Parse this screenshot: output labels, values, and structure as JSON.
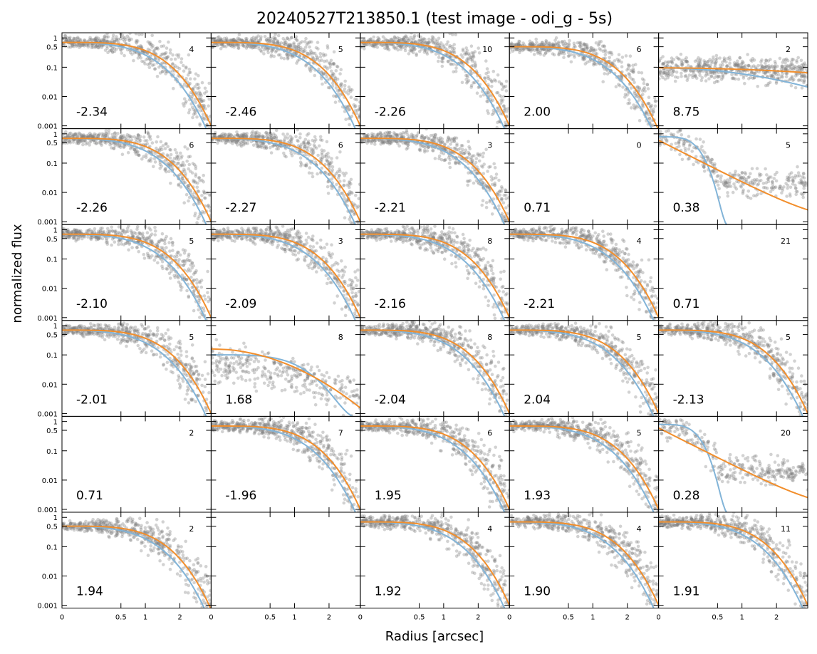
{
  "chart_data": {
    "type": "scatter",
    "title": "20240527T213850.1 (test image - odi_g - 5s)",
    "xlabel": "Radius [arcsec]",
    "ylabel": "normalized flux",
    "x_scale": "sqrt",
    "y_scale": "log",
    "xlim": [
      0,
      3.2
    ],
    "ylim": [
      0.0008,
      1.5
    ],
    "xticks": [
      0,
      0.5,
      1,
      2
    ],
    "xtick_labels": [
      "0",
      "0.5",
      "1",
      "2"
    ],
    "yticks": [
      0.001,
      0.01,
      0.1,
      0.5,
      1
    ],
    "ytick_labels": [
      "0.001",
      "0.01",
      "0.1",
      "0.5",
      "1"
    ],
    "grid": false,
    "legend": "none",
    "colors": {
      "scatter": "#7f7f7f",
      "fit_orange": "#f28e2b",
      "fit_blue": "#82b4d8",
      "fit_blue_dark": "#5a8fb8"
    },
    "panels": [
      {
        "row": 0,
        "col": 0,
        "value": "-2.34",
        "count": "4",
        "type": "normal"
      },
      {
        "row": 0,
        "col": 1,
        "value": "-2.46",
        "count": "5",
        "type": "normal"
      },
      {
        "row": 0,
        "col": 2,
        "value": "-2.26",
        "count": "10",
        "type": "normal"
      },
      {
        "row": 0,
        "col": 3,
        "value": "2.00",
        "count": "6",
        "type": "normal_low"
      },
      {
        "row": 0,
        "col": 4,
        "value": "8.75",
        "count": "2",
        "type": "flat"
      },
      {
        "row": 1,
        "col": 0,
        "value": "-2.26",
        "count": "6",
        "type": "normal"
      },
      {
        "row": 1,
        "col": 1,
        "value": "-2.27",
        "count": "6",
        "type": "normal"
      },
      {
        "row": 1,
        "col": 2,
        "value": "-2.21",
        "count": "3",
        "type": "normal"
      },
      {
        "row": 1,
        "col": 3,
        "value": "0.71",
        "count": "0",
        "type": "empty"
      },
      {
        "row": 1,
        "col": 4,
        "value": "0.38",
        "count": "5",
        "type": "weird_a"
      },
      {
        "row": 2,
        "col": 0,
        "value": "-2.10",
        "count": "5",
        "type": "normal"
      },
      {
        "row": 2,
        "col": 1,
        "value": "-2.09",
        "count": "3",
        "type": "normal"
      },
      {
        "row": 2,
        "col": 2,
        "value": "-2.16",
        "count": "8",
        "type": "normal"
      },
      {
        "row": 2,
        "col": 3,
        "value": "-2.21",
        "count": "4",
        "type": "normal"
      },
      {
        "row": 2,
        "col": 4,
        "value": "0.71",
        "count": "21",
        "type": "empty"
      },
      {
        "row": 3,
        "col": 0,
        "value": "-2.01",
        "count": "5",
        "type": "normal"
      },
      {
        "row": 3,
        "col": 1,
        "value": "1.68",
        "count": "8",
        "type": "weird_b"
      },
      {
        "row": 3,
        "col": 2,
        "value": "-2.04",
        "count": "8",
        "type": "normal"
      },
      {
        "row": 3,
        "col": 3,
        "value": "2.04",
        "count": "5",
        "type": "normal"
      },
      {
        "row": 3,
        "col": 4,
        "value": "-2.13",
        "count": "5",
        "type": "normal"
      },
      {
        "row": 4,
        "col": 0,
        "value": "0.71",
        "count": "2",
        "type": "empty"
      },
      {
        "row": 4,
        "col": 1,
        "value": "-1.96",
        "count": "7",
        "type": "normal"
      },
      {
        "row": 4,
        "col": 2,
        "value": "1.95",
        "count": "6",
        "type": "normal"
      },
      {
        "row": 4,
        "col": 3,
        "value": "1.93",
        "count": "5",
        "type": "normal"
      },
      {
        "row": 4,
        "col": 4,
        "value": "0.28",
        "count": "20",
        "type": "weird_a"
      },
      {
        "row": 5,
        "col": 0,
        "value": "1.94",
        "count": "2",
        "type": "normal_low"
      },
      {
        "row": 5,
        "col": 1,
        "value": "",
        "count": "",
        "type": "blank"
      },
      {
        "row": 5,
        "col": 2,
        "value": "1.92",
        "count": "4",
        "type": "normal"
      },
      {
        "row": 5,
        "col": 3,
        "value": "1.90",
        "count": "4",
        "type": "normal"
      },
      {
        "row": 5,
        "col": 4,
        "value": "1.91",
        "count": "11",
        "type": "normal"
      }
    ]
  }
}
